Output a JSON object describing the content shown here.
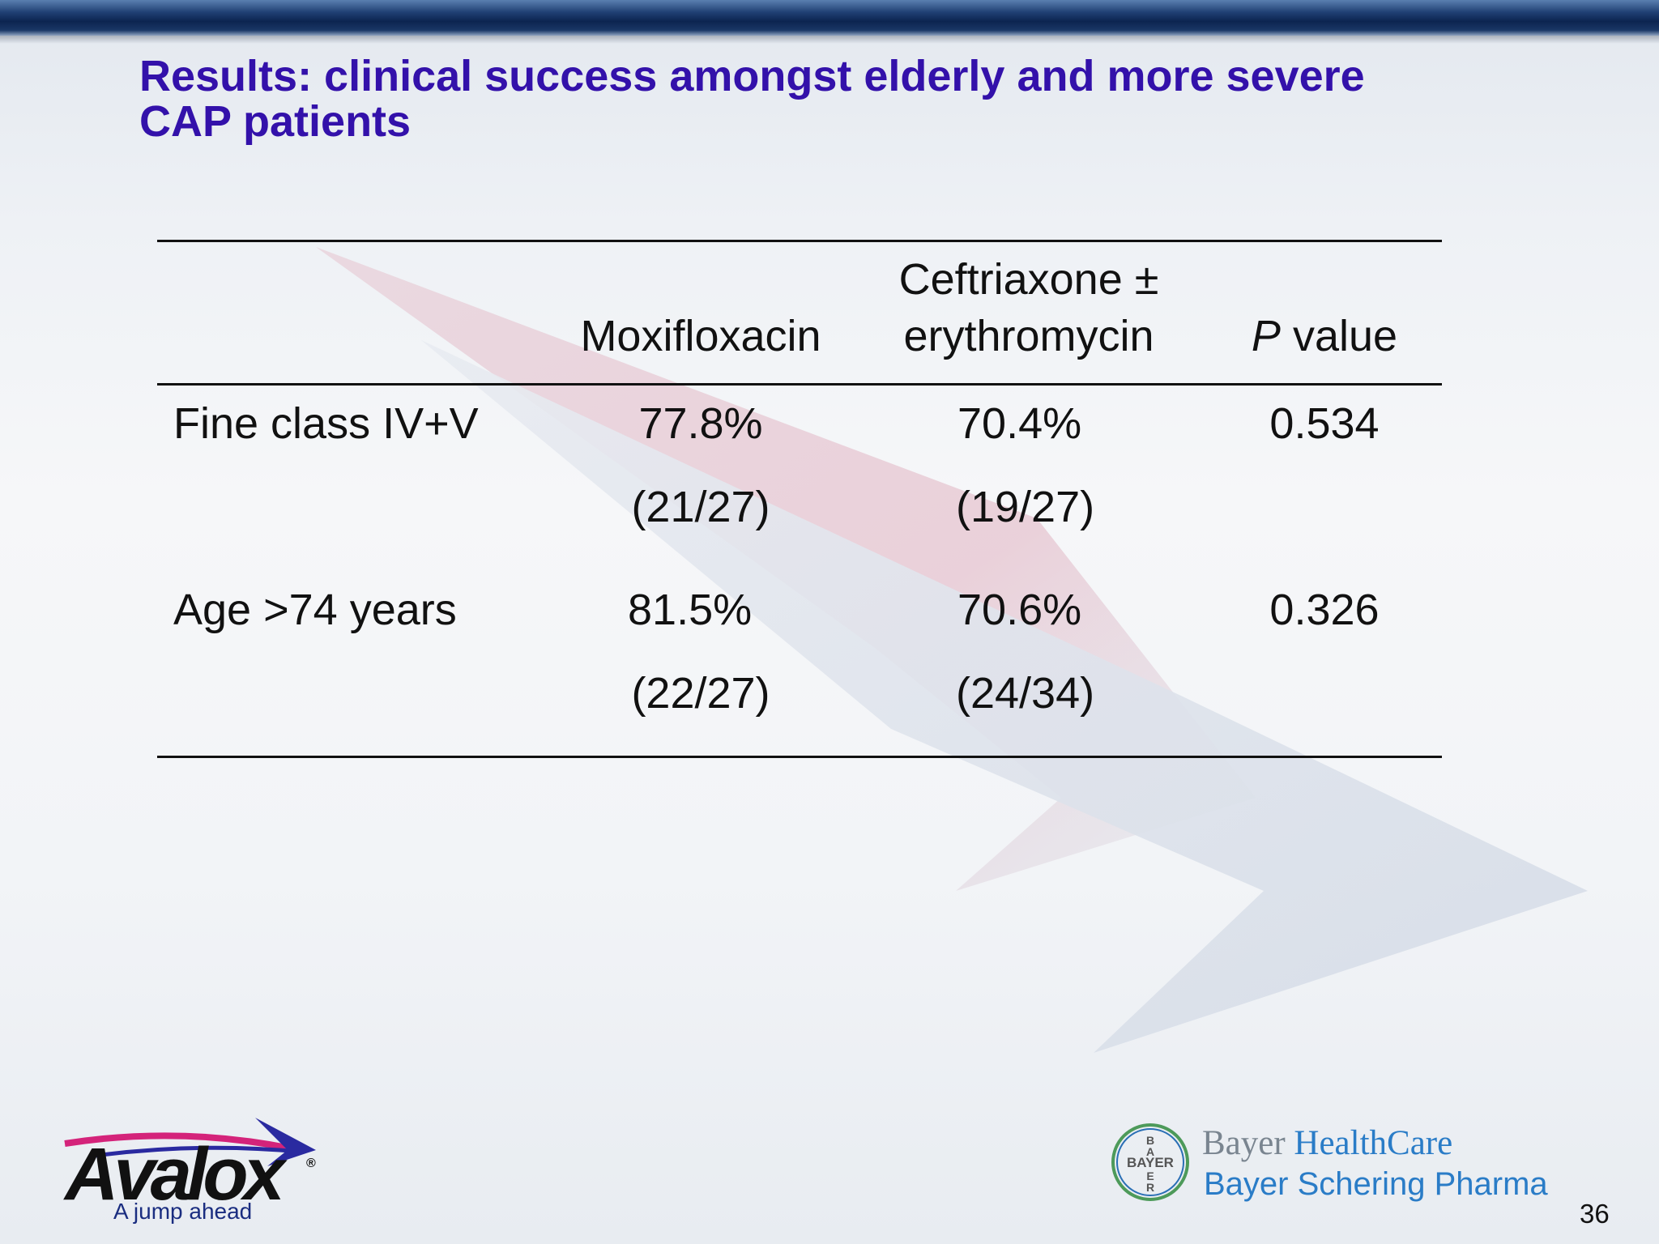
{
  "slide": {
    "title_line1": "Results: clinical success amongst elderly and more severe",
    "title_line2": "CAP patients",
    "page_number": "36"
  },
  "table": {
    "headers": {
      "col1": "Moxifloxacin",
      "col2_line1": "Ceftriaxone ±",
      "col2_line2": "erythromycin",
      "col3_italic": "P",
      "col3_rest": " value"
    },
    "rows": [
      {
        "label": "Fine class IV+V",
        "moxi_pct": "77.8%",
        "moxi_frac": "(21/27)",
        "ceft_pct": "70.4%",
        "ceft_frac": "(19/27)",
        "p": "0.534"
      },
      {
        "label": "Age >74 years",
        "moxi_pct": "81.5%",
        "moxi_frac": "(22/27)",
        "ceft_pct": "70.6%",
        "ceft_frac": "(24/34)",
        "p": "0.326"
      }
    ]
  },
  "branding": {
    "product": "Avalox",
    "registered": "®",
    "tagline": "A jump ahead",
    "company_line1_a": "Bayer",
    "company_line1_b": " HealthCare",
    "company_line2": "Bayer Schering Pharma",
    "cross_text": "BAYER"
  },
  "colors": {
    "title": "#3311aa",
    "top_bar": "#0c2450",
    "bayer_blue": "#2a7cc7",
    "bayer_grey": "#7a8590"
  }
}
